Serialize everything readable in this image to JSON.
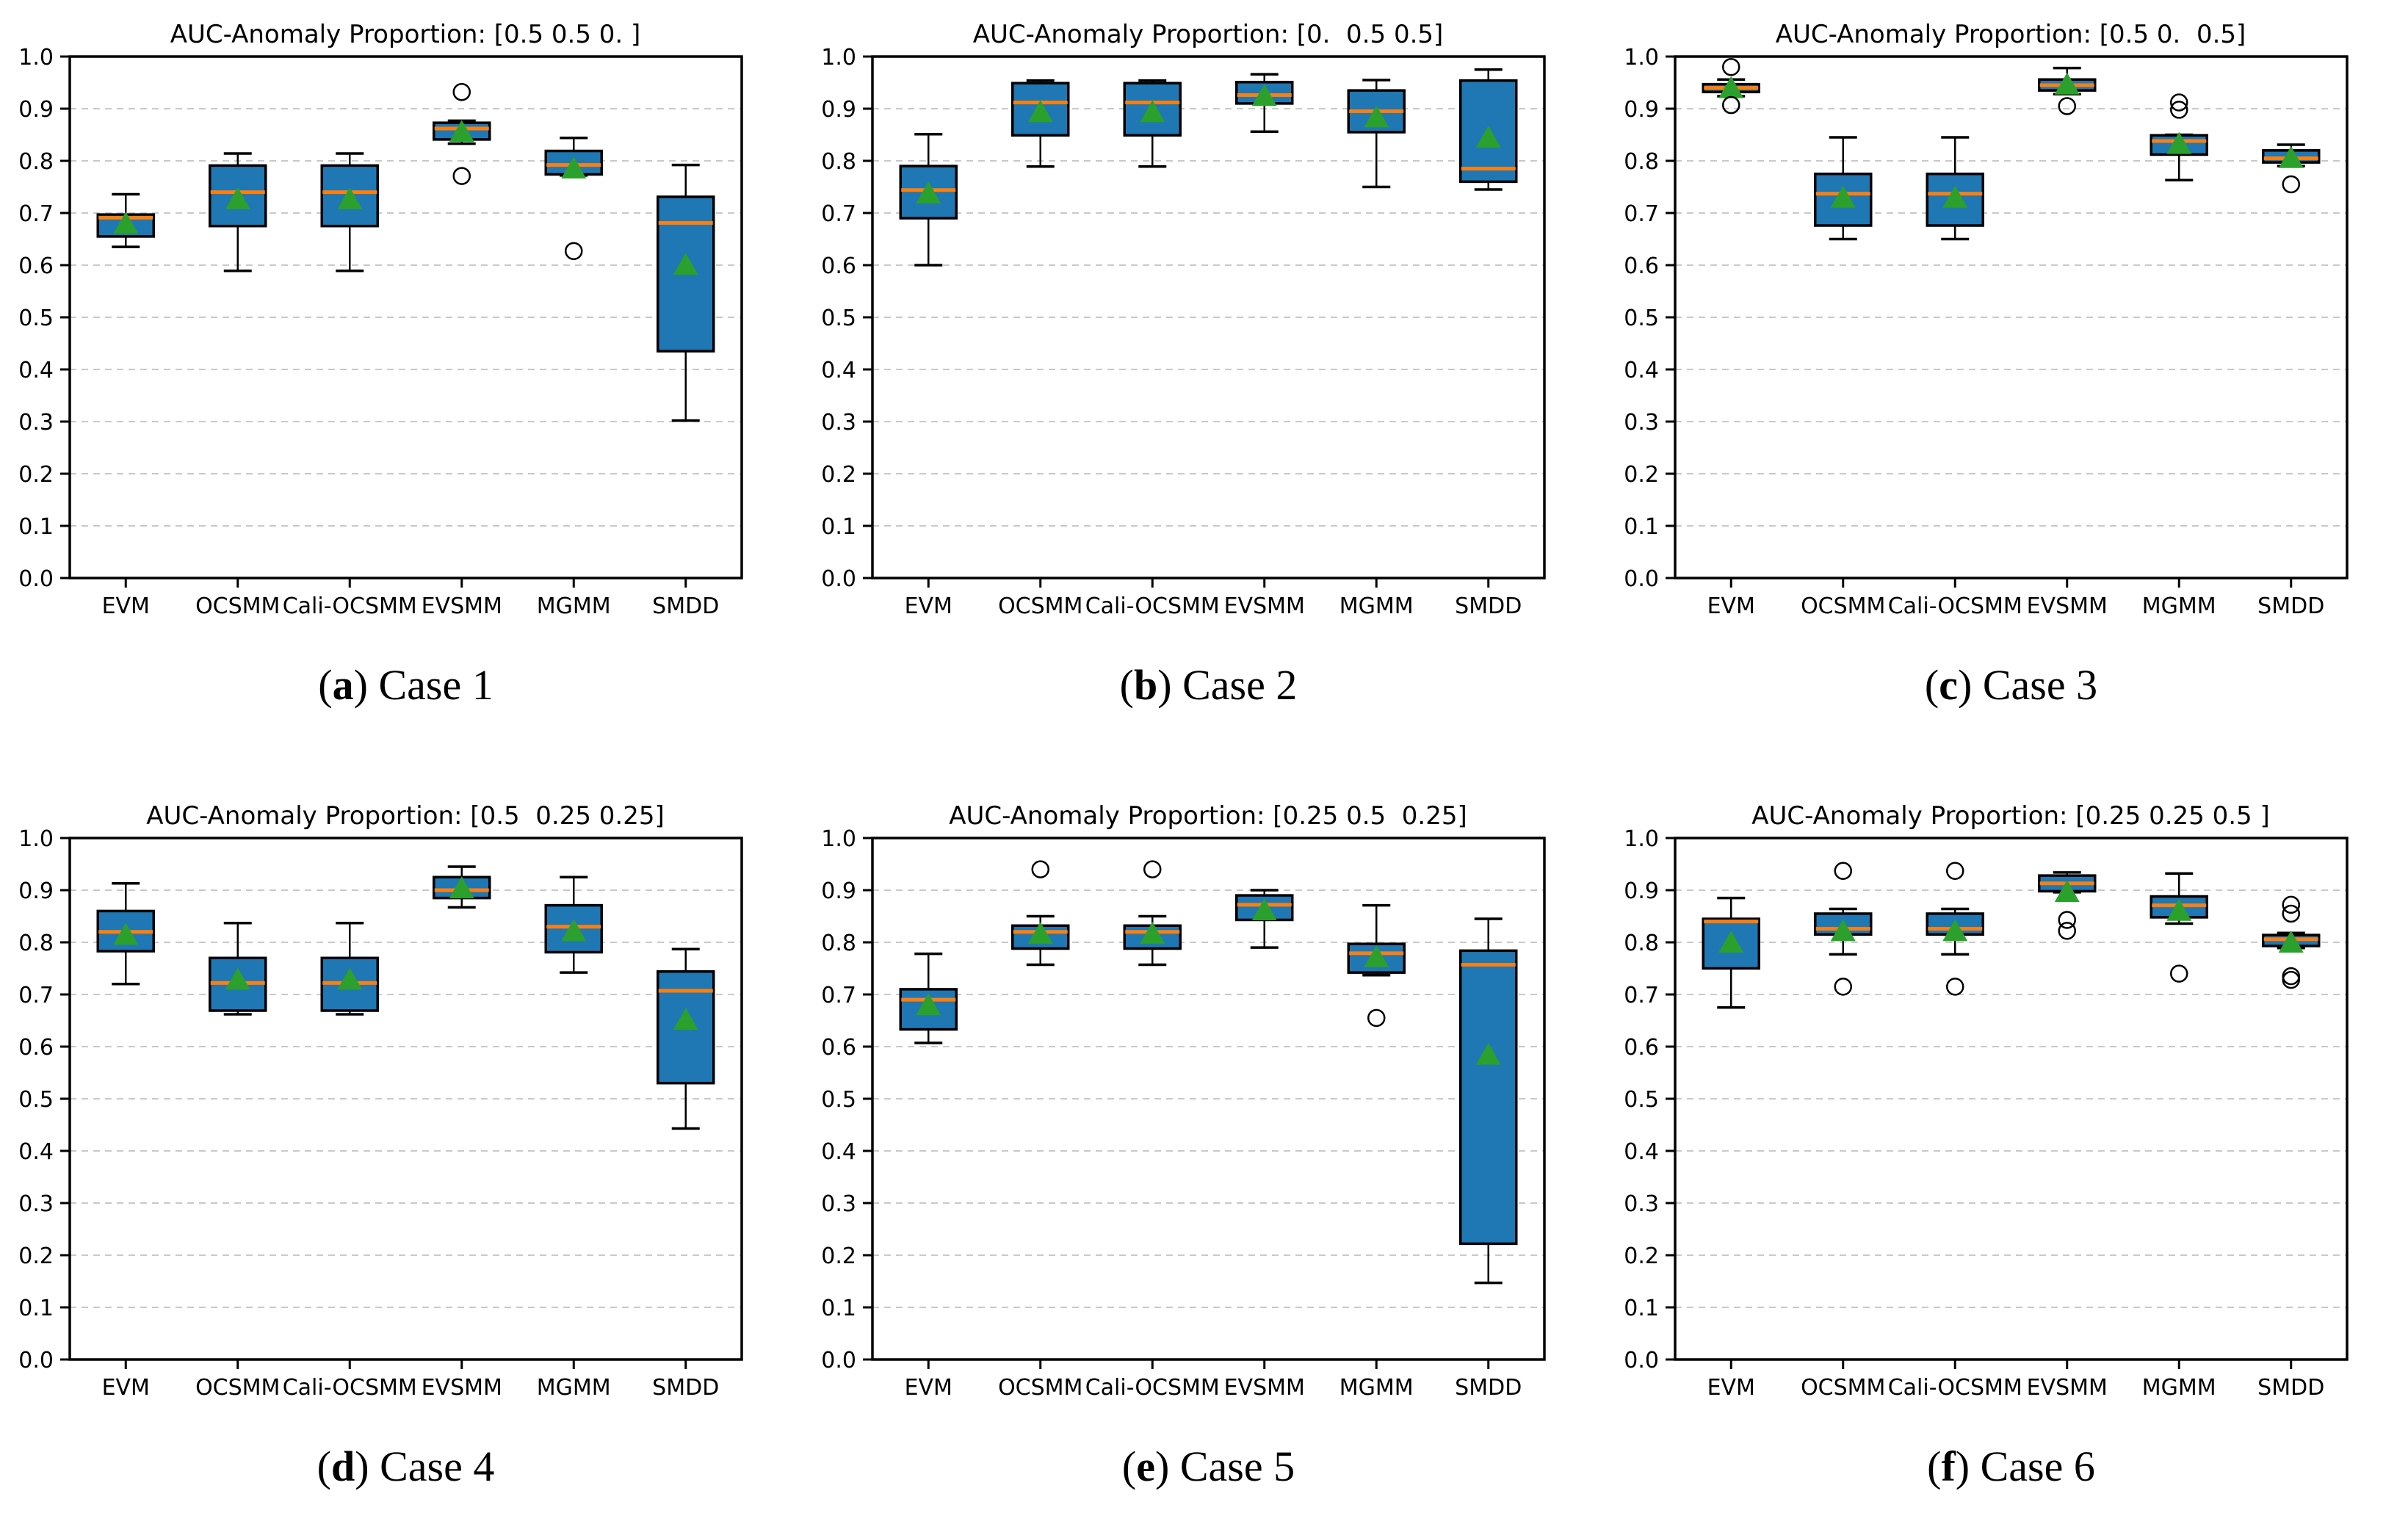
{
  "figure": {
    "background": "#ffffff",
    "box_fill": "#1f77b4",
    "median_color": "#ff7f0e",
    "mean_color": "#2ca02c",
    "edge_color": "#000000",
    "grid_color": "#c9c9c9"
  },
  "chart_data": [
    {
      "id": "a",
      "type": "box",
      "title": "AUC-Anomaly Proportion: [0.5 0.5 0. ]",
      "caption": {
        "open": "(",
        "letter": "a",
        "close": ")",
        "text": "Case 1"
      },
      "ylim": [
        0.0,
        1.0
      ],
      "ytick_step": 0.1,
      "grid": "dashed-horizontal",
      "boxes": [
        {
          "label": "EVM",
          "whislo": 0.635,
          "q1": 0.655,
          "med": 0.691,
          "q3": 0.697,
          "whishi": 0.736,
          "mean": 0.68,
          "fliers": []
        },
        {
          "label": "OCSMM",
          "whislo": 0.589,
          "q1": 0.675,
          "med": 0.74,
          "q3": 0.791,
          "whishi": 0.814,
          "mean": 0.727,
          "fliers": []
        },
        {
          "label": "Cali-OCSMM",
          "whislo": 0.589,
          "q1": 0.675,
          "med": 0.74,
          "q3": 0.791,
          "whishi": 0.814,
          "mean": 0.727,
          "fliers": []
        },
        {
          "label": "EVSMM",
          "whislo": 0.833,
          "q1": 0.841,
          "med": 0.862,
          "q3": 0.873,
          "whishi": 0.877,
          "mean": 0.856,
          "fliers": [
            0.932,
            0.771
          ]
        },
        {
          "label": "MGMM",
          "whislo": 0.772,
          "q1": 0.774,
          "med": 0.792,
          "q3": 0.819,
          "whishi": 0.844,
          "mean": 0.786,
          "fliers": [
            0.627
          ]
        },
        {
          "label": "SMDD",
          "whislo": 0.302,
          "q1": 0.435,
          "med": 0.681,
          "q3": 0.731,
          "whishi": 0.792,
          "mean": 0.601,
          "fliers": []
        }
      ]
    },
    {
      "id": "b",
      "type": "box",
      "title": "AUC-Anomaly Proportion: [0.  0.5 0.5]",
      "caption": {
        "open": "(",
        "letter": "b",
        "close": ")",
        "text": "Case 2"
      },
      "ylim": [
        0.0,
        1.0
      ],
      "ytick_step": 0.1,
      "grid": "dashed-horizontal",
      "boxes": [
        {
          "label": "EVM",
          "whislo": 0.6,
          "q1": 0.69,
          "med": 0.744,
          "q3": 0.79,
          "whishi": 0.851,
          "mean": 0.738,
          "fliers": []
        },
        {
          "label": "OCSMM",
          "whislo": 0.789,
          "q1": 0.849,
          "med": 0.912,
          "q3": 0.949,
          "whishi": 0.954,
          "mean": 0.894,
          "fliers": []
        },
        {
          "label": "Cali-OCSMM",
          "whislo": 0.789,
          "q1": 0.849,
          "med": 0.912,
          "q3": 0.949,
          "whishi": 0.954,
          "mean": 0.894,
          "fliers": []
        },
        {
          "label": "EVSMM",
          "whislo": 0.856,
          "q1": 0.91,
          "med": 0.926,
          "q3": 0.951,
          "whishi": 0.966,
          "mean": 0.925,
          "fliers": []
        },
        {
          "label": "MGMM",
          "whislo": 0.75,
          "q1": 0.855,
          "med": 0.895,
          "q3": 0.935,
          "whishi": 0.955,
          "mean": 0.884,
          "fliers": []
        },
        {
          "label": "SMDD",
          "whislo": 0.745,
          "q1": 0.76,
          "med": 0.785,
          "q3": 0.954,
          "whishi": 0.975,
          "mean": 0.845,
          "fliers": []
        }
      ]
    },
    {
      "id": "c",
      "type": "box",
      "title": "AUC-Anomaly Proportion: [0.5 0.  0.5]",
      "caption": {
        "open": "(",
        "letter": "c",
        "close": ")",
        "text": "Case 3"
      },
      "ylim": [
        0.0,
        1.0
      ],
      "ytick_step": 0.1,
      "grid": "dashed-horizontal",
      "boxes": [
        {
          "label": "EVM",
          "whislo": 0.924,
          "q1": 0.932,
          "med": 0.94,
          "q3": 0.947,
          "whishi": 0.956,
          "mean": 0.94,
          "fliers": [
            0.98,
            0.907
          ]
        },
        {
          "label": "OCSMM",
          "whislo": 0.65,
          "q1": 0.676,
          "med": 0.737,
          "q3": 0.775,
          "whishi": 0.845,
          "mean": 0.73,
          "fliers": []
        },
        {
          "label": "Cali-OCSMM",
          "whislo": 0.65,
          "q1": 0.676,
          "med": 0.737,
          "q3": 0.775,
          "whishi": 0.845,
          "mean": 0.73,
          "fliers": []
        },
        {
          "label": "EVSMM",
          "whislo": 0.928,
          "q1": 0.935,
          "med": 0.945,
          "q3": 0.956,
          "whishi": 0.978,
          "mean": 0.947,
          "fliers": [
            0.905
          ]
        },
        {
          "label": "MGMM",
          "whislo": 0.763,
          "q1": 0.812,
          "med": 0.838,
          "q3": 0.849,
          "whishi": 0.85,
          "mean": 0.833,
          "fliers": [
            0.912,
            0.898
          ]
        },
        {
          "label": "SMDD",
          "whislo": 0.79,
          "q1": 0.797,
          "med": 0.805,
          "q3": 0.82,
          "whishi": 0.831,
          "mean": 0.806,
          "fliers": [
            0.755
          ]
        }
      ]
    },
    {
      "id": "d",
      "type": "box",
      "title": "AUC-Anomaly Proportion: [0.5  0.25 0.25]",
      "caption": {
        "open": "(",
        "letter": "d",
        "close": ")",
        "text": "Case 4"
      },
      "ylim": [
        0.0,
        1.0
      ],
      "ytick_step": 0.1,
      "grid": "dashed-horizontal",
      "boxes": [
        {
          "label": "EVM",
          "whislo": 0.72,
          "q1": 0.783,
          "med": 0.82,
          "q3": 0.86,
          "whishi": 0.913,
          "mean": 0.815,
          "fliers": []
        },
        {
          "label": "OCSMM",
          "whislo": 0.662,
          "q1": 0.669,
          "med": 0.722,
          "q3": 0.77,
          "whishi": 0.837,
          "mean": 0.729,
          "fliers": []
        },
        {
          "label": "Cali-OCSMM",
          "whislo": 0.662,
          "q1": 0.669,
          "med": 0.722,
          "q3": 0.77,
          "whishi": 0.837,
          "mean": 0.729,
          "fliers": []
        },
        {
          "label": "EVSMM",
          "whislo": 0.867,
          "q1": 0.885,
          "med": 0.9,
          "q3": 0.925,
          "whishi": 0.945,
          "mean": 0.904,
          "fliers": []
        },
        {
          "label": "MGMM",
          "whislo": 0.742,
          "q1": 0.781,
          "med": 0.83,
          "q3": 0.871,
          "whishi": 0.925,
          "mean": 0.822,
          "fliers": []
        },
        {
          "label": "SMDD",
          "whislo": 0.443,
          "q1": 0.53,
          "med": 0.707,
          "q3": 0.744,
          "whishi": 0.787,
          "mean": 0.652,
          "fliers": []
        }
      ]
    },
    {
      "id": "e",
      "type": "box",
      "title": "AUC-Anomaly Proportion: [0.25 0.5  0.25]",
      "caption": {
        "open": "(",
        "letter": "e",
        "close": ")",
        "text": "Case 5"
      },
      "ylim": [
        0.0,
        1.0
      ],
      "ytick_step": 0.1,
      "grid": "dashed-horizontal",
      "boxes": [
        {
          "label": "EVM",
          "whislo": 0.607,
          "q1": 0.633,
          "med": 0.69,
          "q3": 0.71,
          "whishi": 0.778,
          "mean": 0.68,
          "fliers": []
        },
        {
          "label": "OCSMM",
          "whislo": 0.757,
          "q1": 0.788,
          "med": 0.82,
          "q3": 0.832,
          "whishi": 0.85,
          "mean": 0.817,
          "fliers": [
            0.94
          ]
        },
        {
          "label": "Cali-OCSMM",
          "whislo": 0.757,
          "q1": 0.788,
          "med": 0.82,
          "q3": 0.832,
          "whishi": 0.85,
          "mean": 0.817,
          "fliers": [
            0.94
          ]
        },
        {
          "label": "EVSMM",
          "whislo": 0.79,
          "q1": 0.843,
          "med": 0.872,
          "q3": 0.89,
          "whishi": 0.9,
          "mean": 0.862,
          "fliers": []
        },
        {
          "label": "MGMM",
          "whislo": 0.737,
          "q1": 0.742,
          "med": 0.779,
          "q3": 0.797,
          "whishi": 0.871,
          "mean": 0.772,
          "fliers": [
            0.655
          ]
        },
        {
          "label": "SMDD",
          "whislo": 0.147,
          "q1": 0.222,
          "med": 0.757,
          "q3": 0.784,
          "whishi": 0.845,
          "mean": 0.585,
          "fliers": []
        }
      ]
    },
    {
      "id": "f",
      "type": "box",
      "title": "AUC-Anomaly Proportion: [0.25 0.25 0.5 ]",
      "caption": {
        "open": "(",
        "letter": "f",
        "close": ")",
        "text": "Case 6"
      },
      "ylim": [
        0.0,
        1.0
      ],
      "ytick_step": 0.1,
      "grid": "dashed-horizontal",
      "boxes": [
        {
          "label": "EVM",
          "whislo": 0.675,
          "q1": 0.75,
          "med": 0.84,
          "q3": 0.845,
          "whishi": 0.885,
          "mean": 0.8,
          "fliers": []
        },
        {
          "label": "OCSMM",
          "whislo": 0.777,
          "q1": 0.815,
          "med": 0.826,
          "q3": 0.855,
          "whishi": 0.864,
          "mean": 0.822,
          "fliers": [
            0.937,
            0.715
          ]
        },
        {
          "label": "Cali-OCSMM",
          "whislo": 0.777,
          "q1": 0.815,
          "med": 0.826,
          "q3": 0.855,
          "whishi": 0.864,
          "mean": 0.822,
          "fliers": [
            0.937,
            0.715
          ]
        },
        {
          "label": "EVSMM",
          "whislo": 0.896,
          "q1": 0.898,
          "med": 0.913,
          "q3": 0.928,
          "whishi": 0.934,
          "mean": 0.897,
          "fliers": [
            0.843,
            0.822
          ]
        },
        {
          "label": "MGMM",
          "whislo": 0.836,
          "q1": 0.848,
          "med": 0.871,
          "q3": 0.888,
          "whishi": 0.932,
          "mean": 0.861,
          "fliers": [
            0.74
          ]
        },
        {
          "label": "SMDD",
          "whislo": 0.789,
          "q1": 0.793,
          "med": 0.806,
          "q3": 0.814,
          "whishi": 0.818,
          "mean": 0.8,
          "fliers": [
            0.872,
            0.855,
            0.735,
            0.728
          ]
        }
      ]
    }
  ]
}
